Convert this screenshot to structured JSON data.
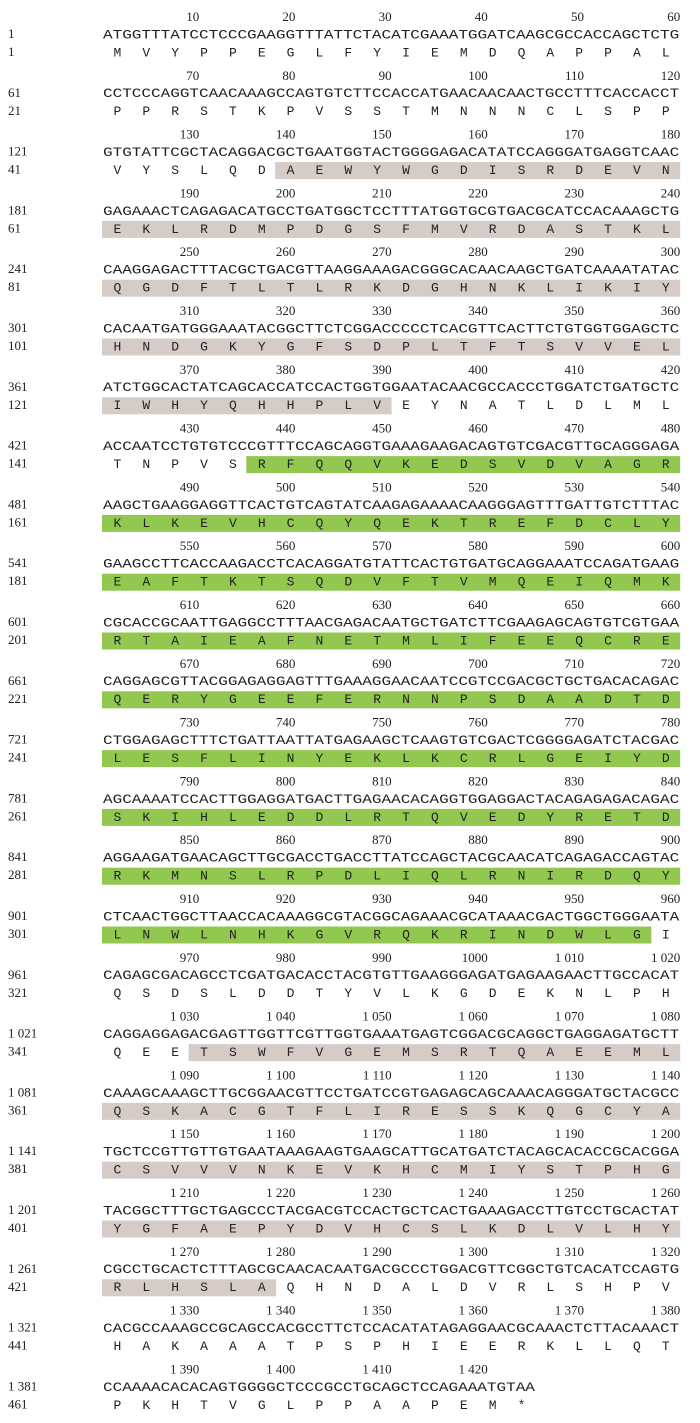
{
  "shade_colors": {
    "gray": "#d6ccc7",
    "green": "#92c850"
  },
  "blocks": [
    {
      "ruler": [
        "10",
        "20",
        "30",
        "40",
        "50",
        "60"
      ],
      "nt_start": "1",
      "nt": "ATGGTTTATCCTCCCGAAGGTTTATTCTACATCGAAATGGATCAAGCGCCACCAGCTCTG",
      "aa_start": "1",
      "aa": [
        "M",
        "V",
        "Y",
        "P",
        "P",
        "E",
        "G",
        "L",
        "F",
        "Y",
        "I",
        "E",
        "M",
        "D",
        "Q",
        "A",
        "P",
        "P",
        "A",
        "L"
      ]
    },
    {
      "ruler": [
        "70",
        "80",
        "90",
        "100",
        "110",
        "120"
      ],
      "nt_start": "61",
      "nt": "CCTCCCAGGTCAACAAAGCCAGTGTCTTCCACCATGAACAACAACTGCCTTTCACCACCT",
      "aa_start": "21",
      "aa": [
        "P",
        "P",
        "R",
        "S",
        "T",
        "K",
        "P",
        "V",
        "S",
        "S",
        "T",
        "M",
        "N",
        "N",
        "N",
        "C",
        "L",
        "S",
        "P",
        "P"
      ]
    },
    {
      "ruler": [
        "130",
        "140",
        "150",
        "160",
        "170",
        "180"
      ],
      "nt_start": "121",
      "nt": "GTGTATTCGCTACAGGACGCTGAATGGTACTGGGGAGACATATCCAGGGATGAGGTCAAC",
      "aa_start": "41",
      "aa": [
        "V",
        "Y",
        "S",
        "L",
        "Q",
        "D",
        "A",
        "E",
        "W",
        "Y",
        "W",
        "G",
        "D",
        "I",
        "S",
        "R",
        "D",
        "E",
        "V",
        "N"
      ],
      "shade": {
        "color": "gray",
        "from": 6,
        "to": 19
      }
    },
    {
      "ruler": [
        "190",
        "200",
        "210",
        "220",
        "230",
        "240"
      ],
      "nt_start": "181",
      "nt": "GAGAAACTCAGAGACATGCCTGATGGCTCCTTTATGGTGCGTGACGCATCCACAAAGCTG",
      "aa_start": "61",
      "aa": [
        "E",
        "K",
        "L",
        "R",
        "D",
        "M",
        "P",
        "D",
        "G",
        "S",
        "F",
        "M",
        "V",
        "R",
        "D",
        "A",
        "S",
        "T",
        "K",
        "L"
      ],
      "shade": {
        "color": "gray",
        "from": 0,
        "to": 19
      }
    },
    {
      "ruler": [
        "250",
        "260",
        "270",
        "280",
        "290",
        "300"
      ],
      "nt_start": "241",
      "nt": "CAAGGAGACTTTACGCTGACGTTAAGGAAAGACGGGCACAACAAGCTGATCAAAATATAC",
      "aa_start": "81",
      "aa": [
        "Q",
        "G",
        "D",
        "F",
        "T",
        "L",
        "T",
        "L",
        "R",
        "K",
        "D",
        "G",
        "H",
        "N",
        "K",
        "L",
        "I",
        "K",
        "I",
        "Y"
      ],
      "shade": {
        "color": "gray",
        "from": 0,
        "to": 19
      }
    },
    {
      "ruler": [
        "310",
        "320",
        "330",
        "340",
        "350",
        "360"
      ],
      "nt_start": "301",
      "nt": "CACAATGATGGGAAATACGGCTTCTCGGACCCCCTCACGTTCACTTCTGTGGTGGAGCTC",
      "aa_start": "101",
      "aa": [
        "H",
        "N",
        "D",
        "G",
        "K",
        "Y",
        "G",
        "F",
        "S",
        "D",
        "P",
        "L",
        "T",
        "F",
        "T",
        "S",
        "V",
        "V",
        "E",
        "L"
      ],
      "shade": {
        "color": "gray",
        "from": 0,
        "to": 19
      }
    },
    {
      "ruler": [
        "370",
        "380",
        "390",
        "400",
        "410",
        "420"
      ],
      "nt_start": "361",
      "nt": "ATCTGGCACTATCAGCACCATCCACTGGTGGAATACAACGCCACCCTGGATCTGATGCTC",
      "aa_start": "121",
      "aa": [
        "I",
        "W",
        "H",
        "Y",
        "Q",
        "H",
        "H",
        "P",
        "L",
        "V",
        "E",
        "Y",
        "N",
        "A",
        "T",
        "L",
        "D",
        "L",
        "M",
        "L"
      ],
      "shade": {
        "color": "gray",
        "from": 0,
        "to": 9
      }
    },
    {
      "ruler": [
        "430",
        "440",
        "450",
        "460",
        "470",
        "480"
      ],
      "nt_start": "421",
      "nt": "ACCAATCCTGTGTCCCGTTTCCAGCAGGTGAAAGAAGACAGTGTCGACGTTGCAGGGAGA",
      "aa_start": "141",
      "aa": [
        "T",
        "N",
        "P",
        "V",
        "S",
        "R",
        "F",
        "Q",
        "Q",
        "V",
        "K",
        "E",
        "D",
        "S",
        "V",
        "D",
        "V",
        "A",
        "G",
        "R"
      ],
      "shade": {
        "color": "green",
        "from": 5,
        "to": 19
      }
    },
    {
      "ruler": [
        "490",
        "500",
        "510",
        "520",
        "530",
        "540"
      ],
      "nt_start": "481",
      "nt": "AAGCTGAAGGAGGTTCACTGTCAGTATCAAGAGAAAACAAGGGAGTTTGATTGTCTTTAC",
      "aa_start": "161",
      "aa": [
        "K",
        "L",
        "K",
        "E",
        "V",
        "H",
        "C",
        "Q",
        "Y",
        "Q",
        "E",
        "K",
        "T",
        "R",
        "E",
        "F",
        "D",
        "C",
        "L",
        "Y"
      ],
      "shade": {
        "color": "green",
        "from": 0,
        "to": 19
      }
    },
    {
      "ruler": [
        "550",
        "560",
        "570",
        "580",
        "590",
        "600"
      ],
      "nt_start": "541",
      "nt": "GAAGCCTTCACCAAGACCTCACAGGATGTATTCACTGTGATGCAGGAAATCCAGATGAAG",
      "aa_start": "181",
      "aa": [
        "E",
        "A",
        "F",
        "T",
        "K",
        "T",
        "S",
        "Q",
        "D",
        "V",
        "F",
        "T",
        "V",
        "M",
        "Q",
        "E",
        "I",
        "Q",
        "M",
        "K"
      ],
      "shade": {
        "color": "green",
        "from": 0,
        "to": 19
      }
    },
    {
      "ruler": [
        "610",
        "620",
        "630",
        "640",
        "650",
        "660"
      ],
      "nt_start": "601",
      "nt": "CGCACCGCAATTGAGGCCTTTAACGAGACAATGCTGATCTTCGAAGAGCAGTGTCGTGAA",
      "aa_start": "201",
      "aa": [
        "R",
        "T",
        "A",
        "I",
        "E",
        "A",
        "F",
        "N",
        "E",
        "T",
        "M",
        "L",
        "I",
        "F",
        "E",
        "E",
        "Q",
        "C",
        "R",
        "E"
      ],
      "shade": {
        "color": "green",
        "from": 0,
        "to": 19
      }
    },
    {
      "ruler": [
        "670",
        "680",
        "690",
        "700",
        "710",
        "720"
      ],
      "nt_start": "661",
      "nt": "CAGGAGCGTTACGGAGAGGAGTTTGAAAGGAACAATCCGTCCGACGCTGCTGACACAGAC",
      "aa_start": "221",
      "aa": [
        "Q",
        "E",
        "R",
        "Y",
        "G",
        "E",
        "E",
        "F",
        "E",
        "R",
        "N",
        "N",
        "P",
        "S",
        "D",
        "A",
        "A",
        "D",
        "T",
        "D"
      ],
      "shade": {
        "color": "green",
        "from": 0,
        "to": 19
      }
    },
    {
      "ruler": [
        "730",
        "740",
        "750",
        "760",
        "770",
        "780"
      ],
      "nt_start": "721",
      "nt": "CTGGAGAGCTTTCTGATTAATTATGAGAAGCTCAAGTGTCGACTCGGGGAGATCTACGAC",
      "aa_start": "241",
      "aa": [
        "L",
        "E",
        "S",
        "F",
        "L",
        "I",
        "N",
        "Y",
        "E",
        "K",
        "L",
        "K",
        "C",
        "R",
        "L",
        "G",
        "E",
        "I",
        "Y",
        "D"
      ],
      "shade": {
        "color": "green",
        "from": 0,
        "to": 19
      }
    },
    {
      "ruler": [
        "790",
        "800",
        "810",
        "820",
        "830",
        "840"
      ],
      "nt_start": "781",
      "nt": "AGCAAAATCCACTTGGAGGATGACTTGAGAACACAGGTGGAGGACTACAGAGAGACAGAC",
      "aa_start": "261",
      "aa": [
        "S",
        "K",
        "I",
        "H",
        "L",
        "E",
        "D",
        "D",
        "L",
        "R",
        "T",
        "Q",
        "V",
        "E",
        "D",
        "Y",
        "R",
        "E",
        "T",
        "D"
      ],
      "shade": {
        "color": "green",
        "from": 0,
        "to": 19
      }
    },
    {
      "ruler": [
        "850",
        "860",
        "870",
        "880",
        "890",
        "900"
      ],
      "nt_start": "841",
      "nt": "AGGAAGATGAACAGCTTGCGACCTGACCTTATCCAGCTACGCAACATCAGAGACCAGTAC",
      "aa_start": "281",
      "aa": [
        "R",
        "K",
        "M",
        "N",
        "S",
        "L",
        "R",
        "P",
        "D",
        "L",
        "I",
        "Q",
        "L",
        "R",
        "N",
        "I",
        "R",
        "D",
        "Q",
        "Y"
      ],
      "shade": {
        "color": "green",
        "from": 0,
        "to": 19
      }
    },
    {
      "ruler": [
        "910",
        "920",
        "930",
        "940",
        "950",
        "960"
      ],
      "nt_start": "901",
      "nt": "CTCAACTGGCTTAACCACAAAGGCGTACGGCAGAAACGCATAAACGACTGGCTGGGAATA",
      "aa_start": "301",
      "aa": [
        "L",
        "N",
        "W",
        "L",
        "N",
        "H",
        "K",
        "G",
        "V",
        "R",
        "Q",
        "K",
        "R",
        "I",
        "N",
        "D",
        "W",
        "L",
        "G",
        "I"
      ],
      "shade": {
        "color": "green",
        "from": 0,
        "to": 18
      }
    },
    {
      "ruler": [
        "970",
        "980",
        "990",
        "1000",
        "1 010",
        "1 020"
      ],
      "nt_start": "961",
      "nt": "CAGAGCGACAGCCTCGATGACACCTACGTGTTGAAGGGAGATGAGAAGAACTTGCCACAT",
      "aa_start": "321",
      "aa": [
        "Q",
        "S",
        "D",
        "S",
        "L",
        "D",
        "D",
        "T",
        "Y",
        "V",
        "L",
        "K",
        "G",
        "D",
        "E",
        "K",
        "N",
        "L",
        "P",
        "H"
      ]
    },
    {
      "ruler": [
        "1 030",
        "1 040",
        "1 050",
        "1 060",
        "1 070",
        "1 080"
      ],
      "nt_start": "1 021",
      "nt": "CAGGAGGAGACGAGTTGGTTCGTTGGTGAAATGAGTCGGACGCAGGCTGAGGAGATGCTT",
      "aa_start": "341",
      "aa": [
        "Q",
        "E",
        "E",
        "T",
        "S",
        "W",
        "F",
        "V",
        "G",
        "E",
        "M",
        "S",
        "R",
        "T",
        "Q",
        "A",
        "E",
        "E",
        "M",
        "L"
      ],
      "shade": {
        "color": "gray",
        "from": 3,
        "to": 19
      }
    },
    {
      "ruler": [
        "1 090",
        "1 100",
        "1 110",
        "1 120",
        "1 130",
        "1 140"
      ],
      "nt_start": "1 081",
      "nt": "CAAAGCAAAGCTTGCGGAACGTTCCTGATCCGTGAGAGCAGCAAACAGGGATGCTACGCC",
      "aa_start": "361",
      "aa": [
        "Q",
        "S",
        "K",
        "A",
        "C",
        "G",
        "T",
        "F",
        "L",
        "I",
        "R",
        "E",
        "S",
        "S",
        "K",
        "Q",
        "G",
        "C",
        "Y",
        "A"
      ],
      "shade": {
        "color": "gray",
        "from": 0,
        "to": 19
      }
    },
    {
      "ruler": [
        "1 150",
        "1 160",
        "1 170",
        "1 180",
        "1 190",
        "1 200"
      ],
      "nt_start": "1 141",
      "nt": "TGCTCCGTTGTTGTGAATAAAGAAGTGAAGCATTGCATGATCTACAGCACACCGCACGGA",
      "aa_start": "381",
      "aa": [
        "C",
        "S",
        "V",
        "V",
        "V",
        "N",
        "K",
        "E",
        "V",
        "K",
        "H",
        "C",
        "M",
        "I",
        "Y",
        "S",
        "T",
        "P",
        "H",
        "G"
      ],
      "shade": {
        "color": "gray",
        "from": 0,
        "to": 19
      }
    },
    {
      "ruler": [
        "1 210",
        "1 220",
        "1 230",
        "1 240",
        "1 250",
        "1 260"
      ],
      "nt_start": "1 201",
      "nt": "TACGGCTTTGCTGAGCCCTACGACGTCCACTGCTCACTGAAAGACCTTGTCCTGCACTAT",
      "aa_start": "401",
      "aa": [
        "Y",
        "G",
        "F",
        "A",
        "E",
        "P",
        "Y",
        "D",
        "V",
        "H",
        "C",
        "S",
        "L",
        "K",
        "D",
        "L",
        "V",
        "L",
        "H",
        "Y"
      ],
      "shade": {
        "color": "gray",
        "from": 0,
        "to": 19
      }
    },
    {
      "ruler": [
        "1 270",
        "1 280",
        "1 290",
        "1 300",
        "1 310",
        "1 320"
      ],
      "nt_start": "1 261",
      "nt": "CGCCTGCACTCTTTAGCGCAACACAATGACGCCCTGGACGTTCGGCTGTCACATCCAGTG",
      "aa_start": "421",
      "aa": [
        "R",
        "L",
        "H",
        "S",
        "L",
        "A",
        "Q",
        "H",
        "N",
        "D",
        "A",
        "L",
        "D",
        "V",
        "R",
        "L",
        "S",
        "H",
        "P",
        "V"
      ],
      "shade": {
        "color": "gray",
        "from": 0,
        "to": 5
      }
    },
    {
      "ruler": [
        "1 330",
        "1 340",
        "1 350",
        "1 360",
        "1 370",
        "1 380"
      ],
      "nt_start": "1 321",
      "nt": "CACGCCAAAGCCGCAGCCACGCCTTCTCCACATATAGAGGAACGCAAACTCTTACAAACT",
      "aa_start": "441",
      "aa": [
        "H",
        "A",
        "K",
        "A",
        "A",
        "A",
        "T",
        "P",
        "S",
        "P",
        "H",
        "I",
        "E",
        "E",
        "R",
        "K",
        "L",
        "L",
        "Q",
        "T"
      ]
    },
    {
      "ruler": [
        "1 390",
        "1 400",
        "1 410",
        "1 420"
      ],
      "nt_start": "1 381",
      "nt": "CCAAAACACACAGTGGGGCTCCCGCCTGCAGCTCCAGAAATGTAA",
      "aa_start": "461",
      "aa": [
        "P",
        "K",
        "H",
        "T",
        "V",
        "G",
        "L",
        "P",
        "P",
        "A",
        "A",
        "P",
        "E",
        "M",
        "*"
      ]
    }
  ]
}
